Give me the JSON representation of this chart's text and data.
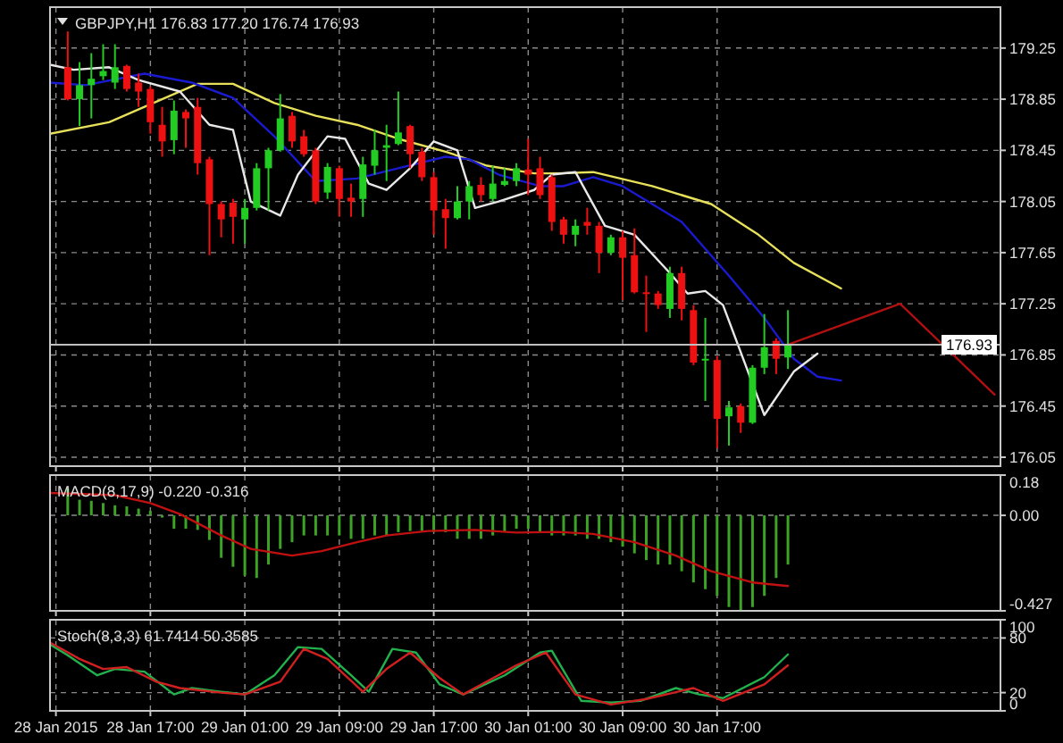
{
  "chart_data": [
    {
      "type": "candlestick",
      "title": "GBPJPY,H1 176.83 177.20 176.74 176.93",
      "xlim": [
        "2015-01-28T08:30",
        "2015-01-31T17:00"
      ],
      "ylim": [
        175.98,
        179.57
      ],
      "grid": true,
      "tick_labels": "y",
      "xticks": [
        "2015-01-28T09:00",
        "2015-01-28T17:00",
        "2015-01-29T01:00",
        "2015-01-29T09:00",
        "2015-01-29T17:00",
        "2015-01-30T01:00",
        "2015-01-30T09:00",
        "2015-01-30T17:00"
      ],
      "yticks": [
        179.25,
        178.85,
        178.45,
        178.05,
        177.65,
        177.25,
        176.85,
        176.45,
        176.05
      ],
      "x": [
        "2015-01-28T10:00",
        "2015-01-28T11:00",
        "2015-01-28T12:00",
        "2015-01-28T13:00",
        "2015-01-28T14:00",
        "2015-01-28T15:00",
        "2015-01-28T16:00",
        "2015-01-28T17:00",
        "2015-01-28T18:00",
        "2015-01-28T19:00",
        "2015-01-28T20:00",
        "2015-01-28T21:00",
        "2015-01-28T22:00",
        "2015-01-28T23:00",
        "2015-01-29T00:00",
        "2015-01-29T01:00",
        "2015-01-29T02:00",
        "2015-01-29T03:00",
        "2015-01-29T04:00",
        "2015-01-29T05:00",
        "2015-01-29T06:00",
        "2015-01-29T07:00",
        "2015-01-29T08:00",
        "2015-01-29T09:00",
        "2015-01-29T10:00",
        "2015-01-29T11:00",
        "2015-01-29T12:00",
        "2015-01-29T13:00",
        "2015-01-29T14:00",
        "2015-01-29T15:00",
        "2015-01-29T16:00",
        "2015-01-29T17:00",
        "2015-01-29T18:00",
        "2015-01-29T19:00",
        "2015-01-29T20:00",
        "2015-01-29T21:00",
        "2015-01-29T22:00",
        "2015-01-29T23:00",
        "2015-01-30T00:00",
        "2015-01-30T01:00",
        "2015-01-30T02:00",
        "2015-01-30T03:00",
        "2015-01-30T04:00",
        "2015-01-30T05:00",
        "2015-01-30T06:00",
        "2015-01-30T07:00",
        "2015-01-30T08:00",
        "2015-01-30T09:00",
        "2015-01-30T10:00",
        "2015-01-30T11:00",
        "2015-01-30T12:00",
        "2015-01-30T13:00",
        "2015-01-30T14:00",
        "2015-01-30T15:00",
        "2015-01-30T16:00",
        "2015-01-30T17:00",
        "2015-01-30T18:00",
        "2015-01-30T19:00",
        "2015-01-30T20:00",
        "2015-01-30T21:00",
        "2015-01-30T22:00",
        "2015-01-30T23:00"
      ],
      "ohlc": [
        [
          179.1,
          179.38,
          178.84,
          178.85
        ],
        [
          178.85,
          179.14,
          178.64,
          178.96
        ],
        [
          178.96,
          179.21,
          178.7,
          179.01
        ],
        [
          179.03,
          179.28,
          179.0,
          179.07
        ],
        [
          178.98,
          179.28,
          178.93,
          179.1
        ],
        [
          179.11,
          179.12,
          178.91,
          178.93
        ],
        [
          178.98,
          179.05,
          178.79,
          178.91
        ],
        [
          178.93,
          178.95,
          178.58,
          178.67
        ],
        [
          178.65,
          178.79,
          178.4,
          178.52
        ],
        [
          178.53,
          178.84,
          178.42,
          178.76
        ],
        [
          178.75,
          178.77,
          178.47,
          178.7
        ],
        [
          178.79,
          178.86,
          178.26,
          178.35
        ],
        [
          178.38,
          178.4,
          177.63,
          178.03
        ],
        [
          178.03,
          178.05,
          177.77,
          177.91
        ],
        [
          178.04,
          178.07,
          177.72,
          177.93
        ],
        [
          177.91,
          178.07,
          177.72,
          178.0
        ],
        [
          178.0,
          178.35,
          177.98,
          178.31
        ],
        [
          178.31,
          178.47,
          177.98,
          178.45
        ],
        [
          178.45,
          178.89,
          178.44,
          178.7
        ],
        [
          178.72,
          178.75,
          178.47,
          178.52
        ],
        [
          178.56,
          178.61,
          178.4,
          178.42
        ],
        [
          178.45,
          178.47,
          178.03,
          178.05
        ],
        [
          178.12,
          178.35,
          178.07,
          178.32
        ],
        [
          178.31,
          178.33,
          177.93,
          178.07
        ],
        [
          178.08,
          178.19,
          177.93,
          178.05
        ],
        [
          178.07,
          178.4,
          177.93,
          178.34
        ],
        [
          178.33,
          178.61,
          178.26,
          178.45
        ],
        [
          178.47,
          178.65,
          178.21,
          178.49
        ],
        [
          178.5,
          178.91,
          178.49,
          178.59
        ],
        [
          178.64,
          178.65,
          178.31,
          178.42
        ],
        [
          178.44,
          178.47,
          178.21,
          178.24
        ],
        [
          178.24,
          178.28,
          177.79,
          177.98
        ],
        [
          177.99,
          178.07,
          177.68,
          177.92
        ],
        [
          177.92,
          178.17,
          177.91,
          178.05
        ],
        [
          178.05,
          178.21,
          177.91,
          178.17
        ],
        [
          178.18,
          178.24,
          178.05,
          178.1
        ],
        [
          178.07,
          178.33,
          178.05,
          178.19
        ],
        [
          178.18,
          178.31,
          178.17,
          178.21
        ],
        [
          178.21,
          178.35,
          178.17,
          178.31
        ],
        [
          178.3,
          178.54,
          178.1,
          178.26
        ],
        [
          178.31,
          178.4,
          178.07,
          178.1
        ],
        [
          178.24,
          178.26,
          177.82,
          177.89
        ],
        [
          177.91,
          177.93,
          177.72,
          177.79
        ],
        [
          177.79,
          177.91,
          177.7,
          177.86
        ],
        [
          177.89,
          178.0,
          177.79,
          177.86
        ],
        [
          177.86,
          177.89,
          177.49,
          177.65
        ],
        [
          177.65,
          177.79,
          177.63,
          177.77
        ],
        [
          177.77,
          177.82,
          177.28,
          177.61
        ],
        [
          177.63,
          177.84,
          177.33,
          177.34
        ],
        [
          177.34,
          177.47,
          177.03,
          177.33
        ],
        [
          177.33,
          177.35,
          177.21,
          177.24
        ],
        [
          177.21,
          177.54,
          177.14,
          177.49
        ],
        [
          177.49,
          177.54,
          177.12,
          177.21
        ],
        [
          177.2,
          177.24,
          176.77,
          176.79
        ],
        [
          176.81,
          177.14,
          176.49,
          176.82
        ],
        [
          176.81,
          176.84,
          176.12,
          176.35
        ],
        [
          176.37,
          176.49,
          176.14,
          176.44
        ],
        [
          176.45,
          176.47,
          176.24,
          176.32
        ],
        [
          176.32,
          176.77,
          176.31,
          176.75
        ],
        [
          176.75,
          177.17,
          176.7,
          176.91
        ],
        [
          176.96,
          176.98,
          176.7,
          176.82
        ],
        [
          176.83,
          177.2,
          176.74,
          176.93
        ]
      ],
      "colors": [
        "#ee1111",
        "#22cc22",
        "#22cc22",
        "#22cc22",
        "#22cc22",
        "#ee1111",
        "#ee1111",
        "#ee1111",
        "#ee1111",
        "#22cc22",
        "#ee1111",
        "#ee1111",
        "#ee1111",
        "#ee1111",
        "#ee1111",
        "#22cc22",
        "#22cc22",
        "#22cc22",
        "#22cc22",
        "#ee1111",
        "#ee1111",
        "#ee1111",
        "#22cc22",
        "#ee1111",
        "#ee1111",
        "#22cc22",
        "#22cc22",
        "#22cc22",
        "#22cc22",
        "#ee1111",
        "#ee1111",
        "#ee1111",
        "#ee1111",
        "#22cc22",
        "#22cc22",
        "#ee1111",
        "#22cc22",
        "#22cc22",
        "#22cc22",
        "#ee1111",
        "#ee1111",
        "#ee1111",
        "#ee1111",
        "#22cc22",
        "#ee1111",
        "#ee1111",
        "#22cc22",
        "#ee1111",
        "#ee1111",
        "#ee1111",
        "#ee1111",
        "#22cc22",
        "#ee1111",
        "#ee1111",
        "#22cc22",
        "#ee1111",
        "#22cc22",
        "#ee1111",
        "#22cc22",
        "#22cc22",
        "#ee1111",
        "#22cc22"
      ],
      "series": [
        {
          "type": "line",
          "color": "#e6e05a",
          "x": [
            "2015-01-28T08:30",
            "2015-01-28T13:30",
            "2015-01-28T16:30",
            "2015-01-28T21:00",
            "2015-01-29T00:00",
            "2015-01-29T03:30",
            "2015-01-29T07:00",
            "2015-01-29T10:30",
            "2015-01-29T14:00",
            "2015-01-29T18:00",
            "2015-01-29T21:30",
            "2015-01-30T01:30",
            "2015-01-30T03:30",
            "2015-01-30T06:30",
            "2015-01-30T11:30",
            "2015-01-30T16:30",
            "2015-01-30T20:30",
            "2015-01-30T23:30",
            "2015-01-31T03:30"
          ],
          "values": [
            178.58,
            178.67,
            178.79,
            178.97,
            178.97,
            178.82,
            178.72,
            178.65,
            178.54,
            178.44,
            178.33,
            178.27,
            178.27,
            178.28,
            178.17,
            178.03,
            177.79,
            177.57,
            177.37
          ]
        },
        {
          "type": "line",
          "color": "#1a1ad0",
          "x": [
            "2015-01-28T08:30",
            "2015-01-28T11:30",
            "2015-01-28T16:30",
            "2015-01-28T20:30",
            "2015-01-29T00:00",
            "2015-01-29T03:30",
            "2015-01-29T07:00",
            "2015-01-29T10:30",
            "2015-01-29T14:00",
            "2015-01-29T18:00",
            "2015-01-29T20:00",
            "2015-01-29T22:30",
            "2015-01-30T02:00",
            "2015-01-30T04:00",
            "2015-01-30T06:30",
            "2015-01-30T09:00",
            "2015-01-30T14:00",
            "2015-01-30T18:00",
            "2015-01-30T21:00",
            "2015-01-30T23:30",
            "2015-01-31T01:30",
            "2015-01-31T03:30"
          ],
          "values": [
            178.98,
            178.96,
            179.05,
            178.98,
            178.86,
            178.56,
            178.21,
            178.23,
            178.31,
            178.4,
            178.38,
            178.26,
            178.17,
            178.17,
            178.24,
            178.17,
            177.89,
            177.47,
            177.14,
            176.82,
            176.68,
            176.65
          ]
        },
        {
          "type": "line",
          "color": "#e8e8e8",
          "x": [
            "2015-01-28T08:30",
            "2015-01-28T10:30",
            "2015-01-28T13:30",
            "2015-01-28T16:00",
            "2015-01-28T19:30",
            "2015-01-28T22:00",
            "2015-01-29T00:00",
            "2015-01-29T01:30",
            "2015-01-29T04:00",
            "2015-01-29T05:30",
            "2015-01-29T08:00",
            "2015-01-29T09:30",
            "2015-01-29T11:30",
            "2015-01-29T13:00",
            "2015-01-29T15:00",
            "2015-01-29T17:00",
            "2015-01-29T19:00",
            "2015-01-29T20:30",
            "2015-01-29T22:30",
            "2015-01-30T01:30",
            "2015-01-30T03:00",
            "2015-01-30T05:00",
            "2015-01-30T07:30",
            "2015-01-30T10:00",
            "2015-01-30T13:00",
            "2015-01-30T14:30",
            "2015-01-30T16:00",
            "2015-01-30T17:30",
            "2015-01-30T21:00",
            "2015-01-30T23:30",
            "2015-01-31T01:30"
          ],
          "values": [
            179.12,
            179.08,
            179.1,
            179.0,
            178.91,
            178.65,
            178.61,
            178.05,
            177.94,
            178.26,
            178.56,
            178.54,
            178.19,
            178.14,
            178.31,
            178.52,
            178.45,
            178.0,
            178.05,
            178.14,
            178.26,
            178.28,
            177.86,
            177.79,
            177.49,
            177.33,
            177.35,
            177.24,
            176.38,
            176.72,
            176.86
          ]
        },
        {
          "type": "line",
          "color": "#b01010",
          "x": [
            "2015-01-30T23:00",
            "2015-01-31T08:30",
            "2015-01-31T16:30"
          ],
          "values": [
            176.93,
            177.25,
            176.54
          ]
        }
      ],
      "ref_lines": [
        {
          "axis": "y",
          "value": 176.93,
          "label": "176.93",
          "color": "#c0c0c0"
        }
      ]
    },
    {
      "type": "bar",
      "title": "MACD(8,17,9) -0.220 -0.316",
      "xlim": [
        "2015-01-28T08:30",
        "2015-01-31T17:00"
      ],
      "ylim": [
        -0.427,
        0.18
      ],
      "grid": true,
      "tick_labels": "y",
      "xticks": [
        "2015-01-28T09:00",
        "2015-01-28T17:00",
        "2015-01-29T01:00",
        "2015-01-29T09:00",
        "2015-01-29T17:00",
        "2015-01-30T01:00",
        "2015-01-30T09:00",
        "2015-01-30T17:00"
      ],
      "yticks": [
        0.18,
        {
          "value": 0,
          "label": "0.00"
        },
        -0.427
      ],
      "x": [
        "2015-01-28T10:00",
        "2015-01-28T11:00",
        "2015-01-28T12:00",
        "2015-01-28T13:00",
        "2015-01-28T14:00",
        "2015-01-28T15:00",
        "2015-01-28T16:00",
        "2015-01-28T17:00",
        "2015-01-28T18:00",
        "2015-01-28T19:00",
        "2015-01-28T20:00",
        "2015-01-28T21:00",
        "2015-01-28T22:00",
        "2015-01-28T23:00",
        "2015-01-29T00:00",
        "2015-01-29T01:00",
        "2015-01-29T02:00",
        "2015-01-29T03:00",
        "2015-01-29T04:00",
        "2015-01-29T05:00",
        "2015-01-29T06:00",
        "2015-01-29T07:00",
        "2015-01-29T08:00",
        "2015-01-29T09:00",
        "2015-01-29T10:00",
        "2015-01-29T11:00",
        "2015-01-29T12:00",
        "2015-01-29T13:00",
        "2015-01-29T14:00",
        "2015-01-29T15:00",
        "2015-01-29T16:00",
        "2015-01-29T17:00",
        "2015-01-29T18:00",
        "2015-01-29T19:00",
        "2015-01-29T20:00",
        "2015-01-29T21:00",
        "2015-01-29T22:00",
        "2015-01-29T23:00",
        "2015-01-30T00:00",
        "2015-01-30T01:00",
        "2015-01-30T02:00",
        "2015-01-30T03:00",
        "2015-01-30T04:00",
        "2015-01-30T05:00",
        "2015-01-30T06:00",
        "2015-01-30T07:00",
        "2015-01-30T08:00",
        "2015-01-30T09:00",
        "2015-01-30T10:00",
        "2015-01-30T11:00",
        "2015-01-30T12:00",
        "2015-01-30T13:00",
        "2015-01-30T14:00",
        "2015-01-30T15:00",
        "2015-01-30T16:00",
        "2015-01-30T17:00",
        "2015-01-30T18:00",
        "2015-01-30T19:00",
        "2015-01-30T20:00",
        "2015-01-30T21:00",
        "2015-01-30T22:00",
        "2015-01-30T23:00"
      ],
      "series": [
        {
          "type": "bar",
          "color": "#3da324",
          "values": [
            0.12,
            0.07,
            0.065,
            0.055,
            0.045,
            0.04,
            0.03,
            0.02,
            -0.01,
            -0.06,
            -0.06,
            -0.065,
            -0.11,
            -0.19,
            -0.23,
            -0.27,
            -0.28,
            -0.22,
            -0.15,
            -0.12,
            -0.09,
            -0.09,
            -0.09,
            -0.09,
            -0.105,
            -0.105,
            -0.09,
            -0.09,
            -0.075,
            -0.07,
            -0.07,
            -0.075,
            -0.075,
            -0.105,
            -0.105,
            -0.105,
            -0.09,
            -0.075,
            -0.06,
            -0.06,
            -0.075,
            -0.09,
            -0.09,
            -0.09,
            -0.105,
            -0.105,
            -0.12,
            -0.14,
            -0.17,
            -0.2,
            -0.22,
            -0.22,
            -0.25,
            -0.3,
            -0.33,
            -0.36,
            -0.41,
            -0.427,
            -0.41,
            -0.36,
            -0.28,
            -0.22
          ]
        },
        {
          "type": "line",
          "color": "#c01010",
          "x": [
            "2015-01-28T08:30",
            "2015-01-28T14:00",
            "2015-01-28T17:00",
            "2015-01-28T19:30",
            "2015-01-28T23:00",
            "2015-01-29T01:30",
            "2015-01-29T05:00",
            "2015-01-29T07:30",
            "2015-01-29T10:30",
            "2015-01-29T13:00",
            "2015-01-29T16:30",
            "2015-01-29T20:30",
            "2015-01-30T00:00",
            "2015-01-30T03:30",
            "2015-01-30T06:30",
            "2015-01-30T10:00",
            "2015-01-30T13:30",
            "2015-01-30T16:30",
            "2015-01-30T20:00",
            "2015-01-30T23:00"
          ],
          "values": [
            0.1,
            0.09,
            0.055,
            0.006,
            -0.09,
            -0.15,
            -0.18,
            -0.16,
            -0.12,
            -0.09,
            -0.07,
            -0.065,
            -0.077,
            -0.074,
            -0.083,
            -0.12,
            -0.18,
            -0.25,
            -0.3,
            -0.316
          ]
        }
      ]
    },
    {
      "type": "line",
      "title": "Stoch(8,3,3) 61.7414 50.3585",
      "xlim": [
        "2015-01-28T08:30",
        "2015-01-31T17:00"
      ],
      "ylim": [
        0,
        100
      ],
      "grid": true,
      "xticks": [
        {
          "value": "2015-01-28T09:00",
          "label": "28 Jan 2015"
        },
        {
          "value": "2015-01-28T17:00",
          "label": "28 Jan 17:00"
        },
        {
          "value": "2015-01-29T01:00",
          "label": "29 Jan 01:00"
        },
        {
          "value": "2015-01-29T09:00",
          "label": "29 Jan 09:00"
        },
        {
          "value": "2015-01-29T17:00",
          "label": "29 Jan 17:00"
        },
        {
          "value": "2015-01-30T01:00",
          "label": "30 Jan 01:00"
        },
        {
          "value": "2015-01-30T09:00",
          "label": "30 Jan 09:00"
        },
        {
          "value": "2015-01-30T17:00",
          "label": "30 Jan 17:00"
        }
      ],
      "yticks": [
        100,
        80,
        20,
        0
      ],
      "series": [
        {
          "color": "#22b14c",
          "x": [
            "2015-01-28T08:30",
            "2015-01-28T10:00",
            "2015-01-28T12:30",
            "2015-01-28T14:00",
            "2015-01-28T16:30",
            "2015-01-28T19:00",
            "2015-01-28T20:30",
            "2015-01-28T23:00",
            "2015-01-29T01:00",
            "2015-01-29T03:30",
            "2015-01-29T05:30",
            "2015-01-29T07:30",
            "2015-01-29T10:00",
            "2015-01-29T11:30",
            "2015-01-29T13:30",
            "2015-01-29T15:30",
            "2015-01-29T17:30",
            "2015-01-29T19:30",
            "2015-01-29T23:00",
            "2015-01-30T02:00",
            "2015-01-30T03:00",
            "2015-01-30T05:30",
            "2015-01-30T08:00",
            "2015-01-30T10:30",
            "2015-01-30T13:30",
            "2015-01-30T15:30",
            "2015-01-30T17:30",
            "2015-01-30T21:00",
            "2015-01-30T23:00"
          ],
          "values": [
            73,
            61,
            39,
            46,
            43,
            18,
            25,
            21,
            18,
            39,
            70,
            68,
            39,
            21,
            68,
            64,
            29,
            18,
            39,
            64,
            66,
            11,
            9,
            11,
            25,
            18,
            14,
            37,
            62
          ]
        },
        {
          "color": "#d02020",
          "x": [
            "2015-01-28T08:30",
            "2015-01-28T11:00",
            "2015-01-28T13:00",
            "2015-01-28T15:00",
            "2015-01-28T17:30",
            "2015-01-28T19:30",
            "2015-01-28T23:00",
            "2015-01-29T01:00",
            "2015-01-29T04:00",
            "2015-01-29T06:00",
            "2015-01-29T08:00",
            "2015-01-29T11:00",
            "2015-01-29T13:00",
            "2015-01-29T15:00",
            "2015-01-29T17:30",
            "2015-01-29T19:30",
            "2015-01-30T00:00",
            "2015-01-30T02:30",
            "2015-01-30T05:00",
            "2015-01-30T08:00",
            "2015-01-30T11:00",
            "2015-01-30T15:00",
            "2015-01-30T17:30",
            "2015-01-30T21:00",
            "2015-01-30T23:00"
          ],
          "values": [
            75,
            57,
            46,
            48,
            32,
            25,
            20,
            18,
            32,
            68,
            57,
            21,
            46,
            64,
            36,
            18,
            50,
            64,
            18,
            7,
            13,
            25,
            11,
            29,
            50
          ]
        }
      ]
    }
  ]
}
